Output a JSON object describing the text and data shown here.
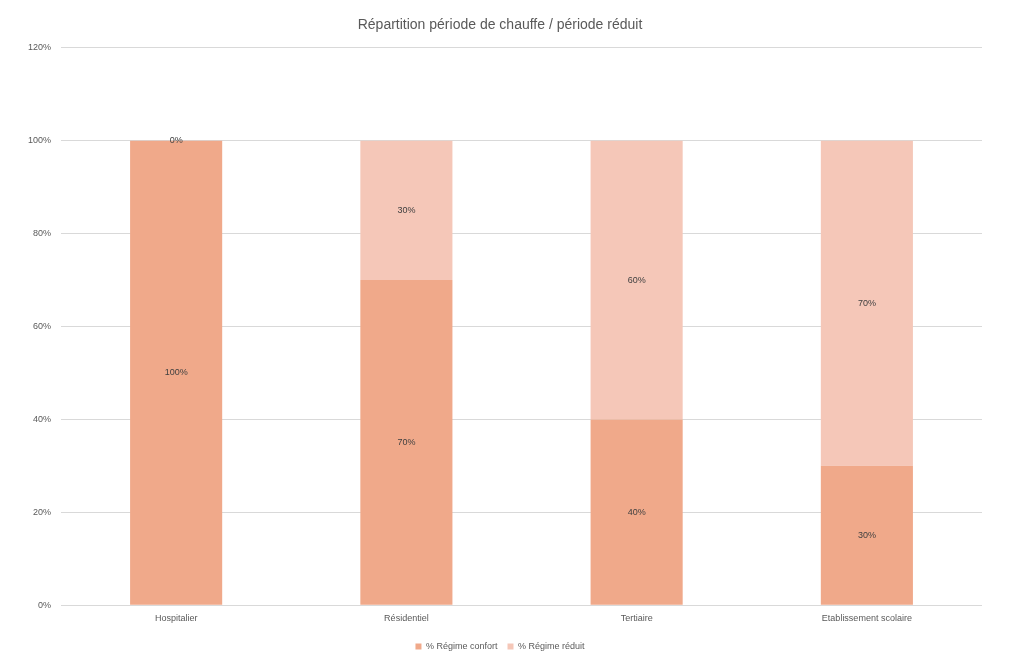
{
  "chart_data": {
    "type": "bar",
    "title": "Répartition période de chauffe / période réduit",
    "categories": [
      "Hospitalier",
      "Résidentiel",
      "Tertiaire",
      "Etablissement scolaire"
    ],
    "series": [
      {
        "name": "% Régime confort",
        "color": "#f0a98a",
        "values": [
          100,
          70,
          40,
          30
        ],
        "value_labels": [
          "100%",
          "70%",
          "40%",
          "30%"
        ]
      },
      {
        "name": "% Régime réduit",
        "color": "#f5c7b8",
        "values": [
          0,
          30,
          60,
          70
        ],
        "value_labels": [
          "0%",
          "30%",
          "60%",
          "70%"
        ]
      }
    ],
    "stacked": true,
    "ylim": [
      0,
      120
    ],
    "yticks": [
      {
        "value": 0,
        "label": "0%"
      },
      {
        "value": 20,
        "label": "20%"
      },
      {
        "value": 40,
        "label": "40%"
      },
      {
        "value": 60,
        "label": "60%"
      },
      {
        "value": 80,
        "label": "80%"
      },
      {
        "value": 100,
        "label": "100%"
      },
      {
        "value": 120,
        "label": "120%"
      }
    ],
    "grid": "y",
    "legend": "bottom"
  }
}
